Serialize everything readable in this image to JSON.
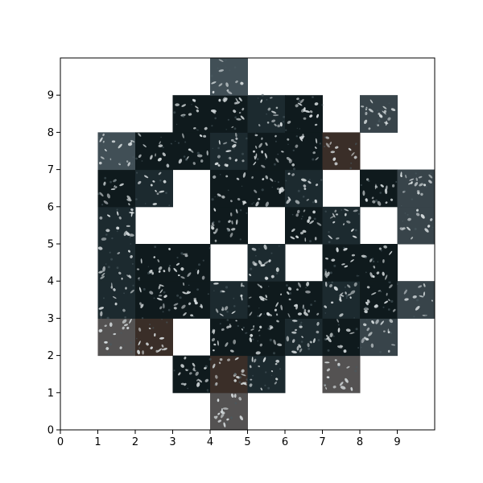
{
  "chart_data": {
    "type": "heatmap",
    "title": "",
    "xlabel": "",
    "ylabel": "",
    "xlim": [
      0,
      10
    ],
    "ylim": [
      0,
      10
    ],
    "x_ticks": [
      "0",
      "1",
      "2",
      "3",
      "4",
      "5",
      "6",
      "7",
      "8",
      "9"
    ],
    "y_ticks": [
      "0",
      "1",
      "2",
      "3",
      "4",
      "5",
      "6",
      "7",
      "8",
      "9"
    ],
    "grid": false,
    "cell_size": 1,
    "content": "image tiles of a petri dish containing dark soil and small white insects, arranged on a 10 by 10 grid with many cells left blank",
    "filled_cells": [
      [
        4,
        0
      ],
      [
        3,
        1
      ],
      [
        4,
        1
      ],
      [
        5,
        1
      ],
      [
        7,
        1
      ],
      [
        1,
        2
      ],
      [
        2,
        2
      ],
      [
        4,
        2
      ],
      [
        5,
        2
      ],
      [
        6,
        2
      ],
      [
        7,
        2
      ],
      [
        8,
        2
      ],
      [
        1,
        3
      ],
      [
        2,
        3
      ],
      [
        3,
        3
      ],
      [
        4,
        3
      ],
      [
        5,
        3
      ],
      [
        6,
        3
      ],
      [
        7,
        3
      ],
      [
        8,
        3
      ],
      [
        9,
        3
      ],
      [
        1,
        4
      ],
      [
        2,
        4
      ],
      [
        3,
        4
      ],
      [
        5,
        4
      ],
      [
        7,
        4
      ],
      [
        8,
        4
      ],
      [
        1,
        5
      ],
      [
        4,
        5
      ],
      [
        6,
        5
      ],
      [
        7,
        5
      ],
      [
        9,
        5
      ],
      [
        1,
        6
      ],
      [
        2,
        6
      ],
      [
        4,
        6
      ],
      [
        5,
        6
      ],
      [
        6,
        6
      ],
      [
        8,
        6
      ],
      [
        9,
        6
      ],
      [
        1,
        7
      ],
      [
        2,
        7
      ],
      [
        3,
        7
      ],
      [
        4,
        7
      ],
      [
        5,
        7
      ],
      [
        6,
        7
      ],
      [
        7,
        7
      ],
      [
        3,
        8
      ],
      [
        4,
        8
      ],
      [
        5,
        8
      ],
      [
        6,
        8
      ],
      [
        8,
        8
      ],
      [
        4,
        9
      ]
    ],
    "tile_tones": {
      "dark": "#0f1a1d",
      "mid": "#1c2a2f",
      "brown": "#3a2e28",
      "rim": "#8796a0",
      "insect": "#d9dfe1"
    }
  }
}
